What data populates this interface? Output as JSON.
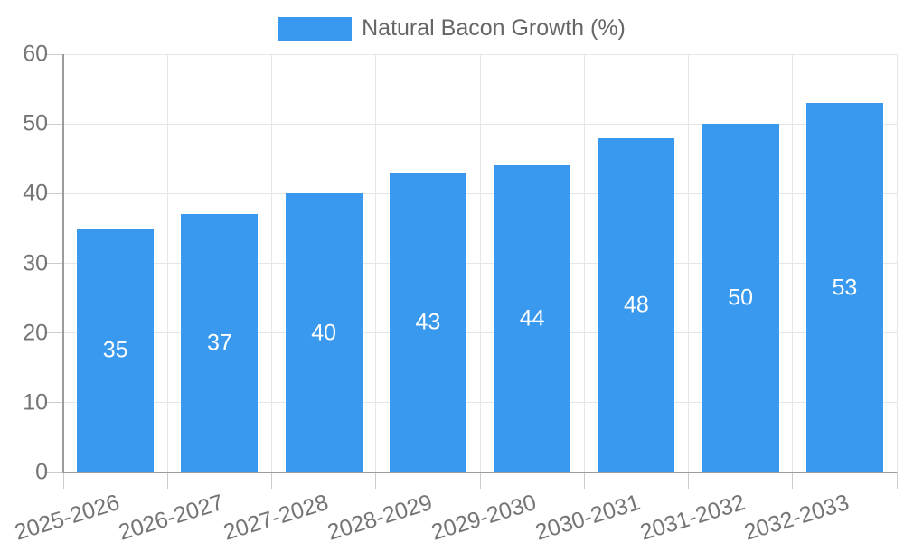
{
  "legend": {
    "label": "Natural Bacon Growth (%)",
    "swatch_color": "#3999EE"
  },
  "chart_data": {
    "type": "bar",
    "title": "Natural Bacon Growth (%)",
    "categories": [
      "2025-2026",
      "2026-2027",
      "2027-2028",
      "2028-2029",
      "2029-2030",
      "2030-2031",
      "2031-2032",
      "2032-2033"
    ],
    "values": [
      35,
      37,
      40,
      43,
      44,
      48,
      50,
      53
    ],
    "value_labels": [
      "35",
      "37",
      "40",
      "43",
      "44",
      "48",
      "50",
      "53"
    ],
    "xlabel": "",
    "ylabel": "",
    "ylim": [
      0,
      60
    ],
    "ytick_step": 10,
    "ytick_labels": [
      "0",
      "10",
      "20",
      "30",
      "40",
      "50",
      "60"
    ],
    "grid": true,
    "legend_position": "top",
    "bar_color": "#3999EE",
    "value_label_color": "#ffffff"
  },
  "colors": {
    "background": "#ffffff",
    "bar": "#3999EE",
    "grid": "#e6e6e6",
    "tick_mark": "#cccccc",
    "axis_line": "#9c9c9c",
    "tick_label_text": "#757575",
    "legend_text": "#666666",
    "value_label_text": "#ffffff"
  }
}
